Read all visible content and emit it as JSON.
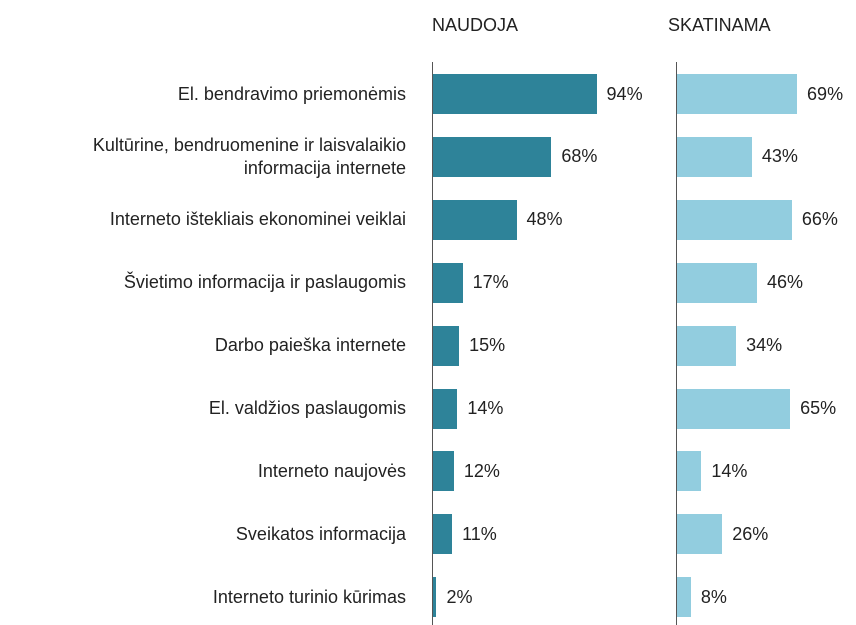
{
  "chart_data": {
    "type": "bar",
    "categories": [
      "El. bendravimo priemonėmis",
      "Kultūrine, bendruomenine ir laisvalaikio informacija internete",
      "Interneto ištekliais ekonominei veiklai",
      "Švietimo informacija ir paslaugomis",
      "Darbo paieška internete",
      "El. valdžios paslaugomis",
      "Interneto naujovės",
      "Sveikatos informacija",
      "Interneto turinio kūrimas"
    ],
    "series": [
      {
        "name": "NAUDOJA",
        "color": "#2e8399",
        "values": [
          94,
          68,
          48,
          17,
          15,
          14,
          12,
          11,
          2
        ],
        "value_labels": [
          "94%",
          "68%",
          "48%",
          "17%",
          "15%",
          "14%",
          "12%",
          "11%",
          "2%"
        ]
      },
      {
        "name": "SKATINAMA",
        "color": "#92cddf",
        "values": [
          69,
          43,
          66,
          46,
          34,
          65,
          14,
          26,
          8
        ],
        "value_labels": [
          "69%",
          "43%",
          "66%",
          "46%",
          "34%",
          "65%",
          "14%",
          "26%",
          "8%"
        ]
      }
    ]
  }
}
